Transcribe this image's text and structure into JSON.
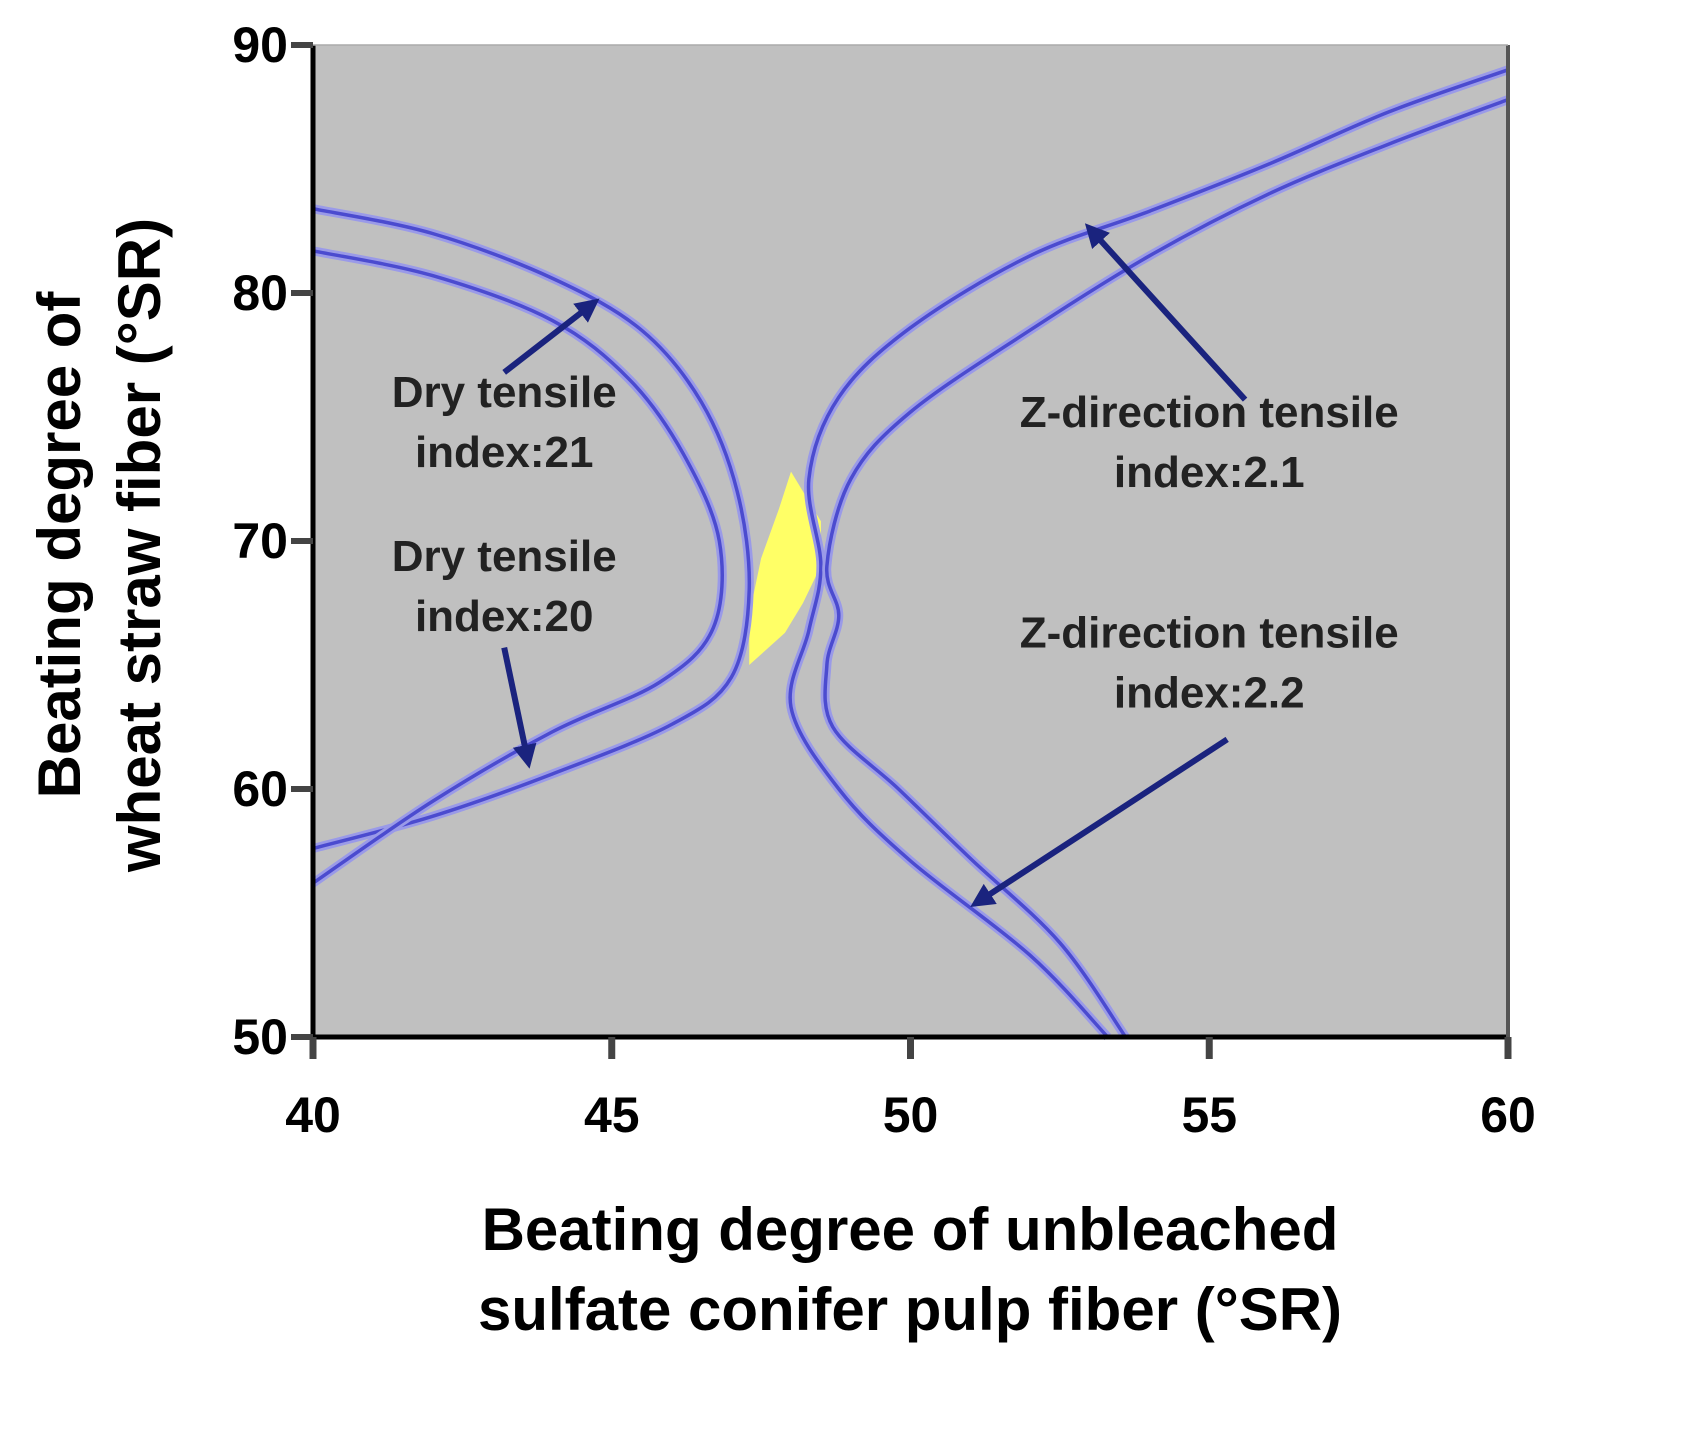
{
  "chart_data": {
    "type": "contour",
    "xlabel": [
      "Beating degree of unbleached",
      "sulfate conifer pulp fiber (°SR)"
    ],
    "ylabel": [
      "Beating degree of",
      "wheat straw fiber (°SR)"
    ],
    "xlim": [
      40,
      60
    ],
    "ylim": [
      50,
      90
    ],
    "xticks": [
      40,
      45,
      50,
      55,
      60
    ],
    "yticks": [
      50,
      60,
      70,
      80,
      90
    ],
    "grid": false,
    "colors": {
      "plot_background": "#c0c0c0",
      "contour_line": "#4b4bcf",
      "arrow": "#1a237e",
      "feasible_region": "#ffff66"
    },
    "series": [
      {
        "name": "Dry tensile index:21",
        "points": [
          [
            40,
            83.4
          ],
          [
            42,
            82.4
          ],
          [
            44,
            80.6
          ],
          [
            45.5,
            78.5
          ],
          [
            46.5,
            75.6
          ],
          [
            47.1,
            72
          ],
          [
            47.3,
            68
          ],
          [
            47,
            64.5
          ],
          [
            46,
            62.6
          ],
          [
            44,
            60.6
          ],
          [
            42,
            58.9
          ],
          [
            40,
            57.6
          ]
        ]
      },
      {
        "name": "Dry tensile index:20",
        "points": [
          [
            40,
            81.7
          ],
          [
            42,
            80.7
          ],
          [
            44,
            78.9
          ],
          [
            45.3,
            76.5
          ],
          [
            46.2,
            73.5
          ],
          [
            46.8,
            70
          ],
          [
            46.7,
            66.5
          ],
          [
            45.8,
            64.3
          ],
          [
            44,
            62.3
          ],
          [
            42,
            59.5
          ],
          [
            40,
            56.2
          ]
        ]
      },
      {
        "name": "Z-direction tensile index:2.1",
        "points": [
          [
            60,
            89
          ],
          [
            58,
            87.3
          ],
          [
            56,
            85.2
          ],
          [
            54,
            83.3
          ],
          [
            52,
            81.5
          ],
          [
            50,
            78.6
          ],
          [
            48.8,
            75.8
          ],
          [
            48.3,
            72.5
          ],
          [
            48.5,
            69
          ],
          [
            48.3,
            66.4
          ],
          [
            48,
            63.3
          ],
          [
            48.8,
            60
          ],
          [
            50,
            57.1
          ],
          [
            52,
            53.3
          ],
          [
            53.3,
            50
          ]
        ]
      },
      {
        "name": "Z-direction tensile index:2.2",
        "points": [
          [
            60,
            87.8
          ],
          [
            58,
            86
          ],
          [
            56,
            84
          ],
          [
            54,
            81.5
          ],
          [
            52,
            78.5
          ],
          [
            50,
            75.2
          ],
          [
            49,
            72.5
          ],
          [
            48.6,
            69
          ],
          [
            48.8,
            67
          ],
          [
            48.6,
            65
          ],
          [
            48.7,
            62.5
          ],
          [
            49.8,
            60
          ],
          [
            51,
            57.2
          ],
          [
            52.5,
            53.8
          ],
          [
            53.6,
            50
          ]
        ]
      }
    ],
    "feasible_region": [
      [
        48,
        72.8
      ],
      [
        48.5,
        70.8
      ],
      [
        48.5,
        69
      ],
      [
        48.2,
        67.5
      ],
      [
        47.9,
        66.3
      ],
      [
        47.3,
        65
      ],
      [
        47.3,
        67
      ],
      [
        47.5,
        69.3
      ],
      [
        47.8,
        71.3
      ]
    ],
    "annotations": [
      {
        "lines": [
          "Dry tensile",
          "index:21"
        ],
        "text_at": [
          43.2,
          75.4
        ],
        "arrow_from": [
          43.2,
          76.8
        ],
        "arrow_to": [
          44.7,
          79.6
        ]
      },
      {
        "lines": [
          "Dry tensile",
          "index:20"
        ],
        "text_at": [
          43.2,
          68.8
        ],
        "arrow_from": [
          43.2,
          65.7
        ],
        "arrow_to": [
          43.6,
          61.1
        ]
      },
      {
        "lines": [
          "Z-direction tensile",
          "index:2.1"
        ],
        "text_at": [
          55,
          74.6
        ],
        "arrow_from": [
          55.6,
          75.7
        ],
        "arrow_to": [
          53,
          82.6
        ]
      },
      {
        "lines": [
          "Z-direction tensile",
          "index:2.2"
        ],
        "text_at": [
          55,
          65.7
        ],
        "arrow_from": [
          55.3,
          62
        ],
        "arrow_to": [
          51.1,
          55.4
        ]
      }
    ]
  }
}
